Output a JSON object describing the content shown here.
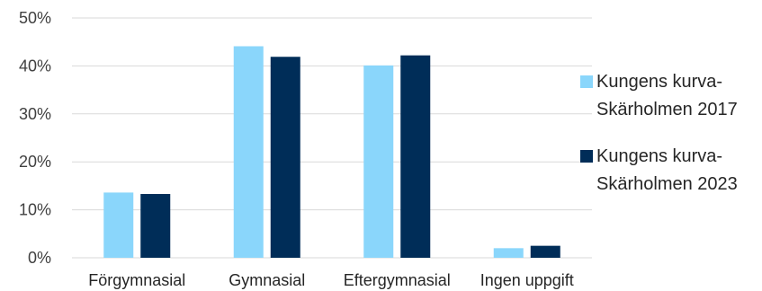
{
  "chart_data": {
    "type": "bar",
    "title": "",
    "xlabel": "",
    "ylabel": "",
    "categories": [
      "Förgymnasial",
      "Gymnasial",
      "Eftergymnasial",
      "Ingen uppgift"
    ],
    "series": [
      {
        "name": "Kungens kurva-Skärholmen 2017",
        "name_lines": [
          "Kungens kurva-",
          "Skärholmen 2017"
        ],
        "color": "#8ad6fb",
        "values": [
          13.6,
          44.1,
          40.1,
          2.0
        ]
      },
      {
        "name": "Kungens kurva-Skärholmen 2023",
        "name_lines": [
          "Kungens kurva-",
          "Skärholmen 2023"
        ],
        "color": "#002d58",
        "values": [
          13.3,
          41.9,
          42.2,
          2.5
        ]
      }
    ],
    "ylim": [
      0,
      50
    ],
    "yticks": [
      0,
      10,
      20,
      30,
      40,
      50
    ],
    "ytick_labels": [
      "0%",
      "10%",
      "20%",
      "30%",
      "40%",
      "50%"
    ],
    "grid": true,
    "legend_position": "right"
  }
}
